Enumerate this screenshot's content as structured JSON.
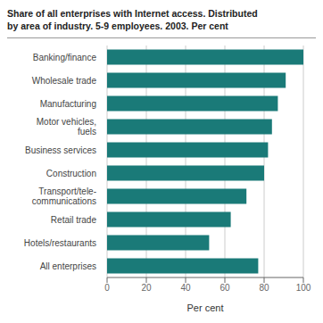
{
  "chart_data": {
    "type": "bar",
    "orientation": "horizontal",
    "title": "Share of all enterprises with Internet access. Distributed\nby area of industry. 5-9 employees. 2003. Per cent",
    "categories": [
      "All enterprises",
      "Hotels/restaurants",
      "Retail trade",
      "Transport/tele-\ncommunications",
      "Construction",
      "Business services",
      "Motor vehicles,\nfuels",
      "Manufacturing",
      "Wholesale trade",
      "Banking/finance"
    ],
    "values": [
      77,
      52,
      63,
      71,
      80,
      82,
      84,
      87,
      91,
      100
    ],
    "color": "#1a7a78",
    "xlabel": "Per cent",
    "xlim": [
      0,
      100
    ],
    "xticks": [
      0,
      20,
      40,
      60,
      80,
      100
    ],
    "grid": true
  }
}
